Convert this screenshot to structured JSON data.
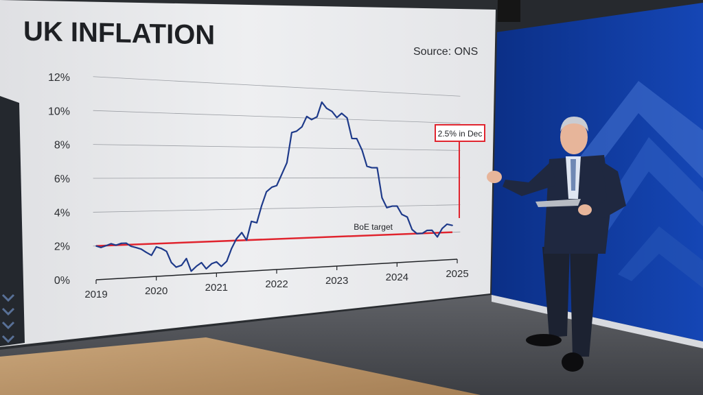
{
  "header": {
    "title": "UK INFLATION",
    "source": "Source: ONS"
  },
  "annotation": {
    "latest_label": "2.5% in Dec"
  },
  "colors": {
    "series": "#1e3a8a",
    "target": "#e0242e",
    "board_bg": "#e9eaec",
    "wall_blue": "#0e3b9c"
  },
  "chart_data": {
    "type": "line",
    "title": "UK INFLATION",
    "ylim": [
      0,
      12
    ],
    "xlim": [
      2019,
      2025
    ],
    "y_ticks": [
      {
        "value": 0,
        "label": "0%"
      },
      {
        "value": 2,
        "label": "2%"
      },
      {
        "value": 4,
        "label": "4%"
      },
      {
        "value": 6,
        "label": "6%"
      },
      {
        "value": 8,
        "label": "8%"
      },
      {
        "value": 10,
        "label": "10%"
      },
      {
        "value": 12,
        "label": "12%"
      }
    ],
    "x_ticks": [
      {
        "value": 2019,
        "label": "2019"
      },
      {
        "value": 2020,
        "label": "2020"
      },
      {
        "value": 2021,
        "label": "2021"
      },
      {
        "value": 2022,
        "label": "2022"
      },
      {
        "value": 2023,
        "label": "2023"
      },
      {
        "value": 2024,
        "label": "2024"
      },
      {
        "value": 2025,
        "label": "2025"
      }
    ],
    "series": [
      {
        "values": [
          [
            2019.0,
            2.0
          ],
          [
            2019.08,
            1.9
          ],
          [
            2019.17,
            2.0
          ],
          [
            2019.25,
            2.1
          ],
          [
            2019.33,
            2.0
          ],
          [
            2019.42,
            2.1
          ],
          [
            2019.5,
            2.1
          ],
          [
            2019.58,
            1.9
          ],
          [
            2019.67,
            1.8
          ],
          [
            2019.75,
            1.7
          ],
          [
            2019.83,
            1.5
          ],
          [
            2019.92,
            1.3
          ],
          [
            2020.0,
            1.8
          ],
          [
            2020.08,
            1.7
          ],
          [
            2020.17,
            1.5
          ],
          [
            2020.25,
            0.8
          ],
          [
            2020.33,
            0.5
          ],
          [
            2020.42,
            0.6
          ],
          [
            2020.5,
            1.0
          ],
          [
            2020.58,
            0.2
          ],
          [
            2020.67,
            0.5
          ],
          [
            2020.75,
            0.7
          ],
          [
            2020.83,
            0.3
          ],
          [
            2020.92,
            0.6
          ],
          [
            2021.0,
            0.7
          ],
          [
            2021.08,
            0.4
          ],
          [
            2021.17,
            0.7
          ],
          [
            2021.25,
            1.5
          ],
          [
            2021.33,
            2.1
          ],
          [
            2021.42,
            2.5
          ],
          [
            2021.5,
            2.0
          ],
          [
            2021.58,
            3.2
          ],
          [
            2021.67,
            3.1
          ],
          [
            2021.75,
            4.2
          ],
          [
            2021.83,
            5.1
          ],
          [
            2021.92,
            5.4
          ],
          [
            2022.0,
            5.5
          ],
          [
            2022.08,
            6.2
          ],
          [
            2022.17,
            7.0
          ],
          [
            2022.25,
            9.0
          ],
          [
            2022.33,
            9.1
          ],
          [
            2022.42,
            9.4
          ],
          [
            2022.5,
            10.1
          ],
          [
            2022.58,
            9.9
          ],
          [
            2022.67,
            10.1
          ],
          [
            2022.75,
            11.1
          ],
          [
            2022.83,
            10.7
          ],
          [
            2022.92,
            10.5
          ],
          [
            2023.0,
            10.1
          ],
          [
            2023.08,
            10.4
          ],
          [
            2023.17,
            10.1
          ],
          [
            2023.25,
            8.7
          ],
          [
            2023.33,
            8.7
          ],
          [
            2023.42,
            7.9
          ],
          [
            2023.5,
            6.8
          ],
          [
            2023.58,
            6.7
          ],
          [
            2023.67,
            6.7
          ],
          [
            2023.75,
            4.6
          ],
          [
            2023.83,
            3.9
          ],
          [
            2023.92,
            4.0
          ],
          [
            2024.0,
            4.0
          ],
          [
            2024.08,
            3.4
          ],
          [
            2024.17,
            3.2
          ],
          [
            2024.25,
            2.3
          ],
          [
            2024.33,
            2.0
          ],
          [
            2024.42,
            2.0
          ],
          [
            2024.5,
            2.2
          ],
          [
            2024.58,
            2.2
          ],
          [
            2024.67,
            1.7
          ],
          [
            2024.75,
            2.3
          ],
          [
            2024.83,
            2.6
          ],
          [
            2024.92,
            2.5
          ]
        ]
      },
      {
        "name": "BoE target",
        "values": [
          [
            2019.0,
            2.0
          ],
          [
            2024.92,
            2.0
          ]
        ]
      }
    ]
  }
}
